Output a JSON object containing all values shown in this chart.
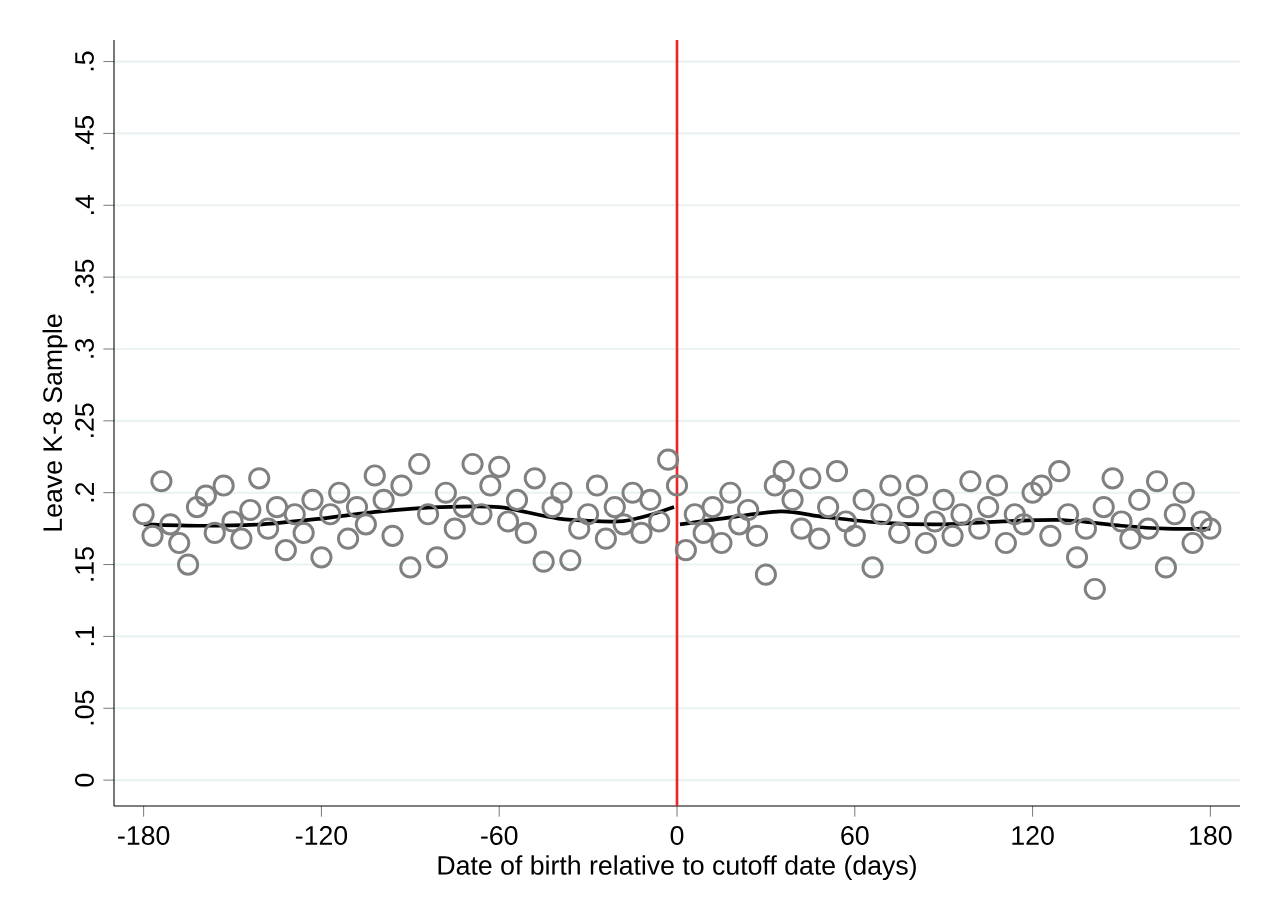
{
  "chart_data": {
    "type": "scatter",
    "xlabel": "Date of birth relative to cutoff date (days)",
    "ylabel": "Leave K-8 Sample",
    "xlim": [
      -190,
      190
    ],
    "ylim": [
      -0.018,
      0.515
    ],
    "xticks": [
      -180,
      -120,
      -60,
      0,
      60,
      120,
      180
    ],
    "yticks": [
      0,
      {
        "value": 0.05,
        "label": ".05"
      },
      {
        "value": 0.1,
        "label": ".1"
      },
      {
        "value": 0.15,
        "label": ".15"
      },
      {
        "value": 0.2,
        "label": ".2"
      },
      {
        "value": 0.25,
        "label": ".25"
      },
      {
        "value": 0.3,
        "label": ".3"
      },
      {
        "value": 0.35,
        "label": ".35"
      },
      {
        "value": 0.4,
        "label": ".4"
      },
      {
        "value": 0.45,
        "label": ".45"
      },
      {
        "value": 0.5,
        "label": ".5"
      }
    ],
    "grid": "y",
    "legend": false,
    "ref_lines": [
      {
        "axis": "x",
        "value": 0,
        "color": "#e8272b"
      }
    ],
    "series": [
      {
        "marker": "circle",
        "color": "#808080",
        "x": [
          -180,
          -177,
          -174,
          -171,
          -168,
          -165,
          -162,
          -159,
          -156,
          -153,
          -150,
          -147,
          -144,
          -141,
          -138,
          -135,
          -132,
          -129,
          -126,
          -123,
          -120,
          -117,
          -114,
          -111,
          -108,
          -105,
          -102,
          -99,
          -96,
          -93,
          -90,
          -87,
          -84,
          -81,
          -78,
          -75,
          -72,
          -69,
          -66,
          -63,
          -60,
          -57,
          -54,
          -51,
          -48,
          -45,
          -42,
          -39,
          -36,
          -33,
          -30,
          -27,
          -24,
          -21,
          -18,
          -15,
          -12,
          -9,
          -6,
          -3,
          0,
          3,
          6,
          9,
          12,
          15,
          18,
          21,
          24,
          27,
          30,
          33,
          36,
          39,
          42,
          45,
          48,
          51,
          54,
          57,
          60,
          63,
          66,
          69,
          72,
          75,
          78,
          81,
          84,
          87,
          90,
          93,
          96,
          99,
          102,
          105,
          108,
          111,
          114,
          117,
          120,
          123,
          126,
          129,
          132,
          135,
          138,
          141,
          144,
          147,
          150,
          153,
          156,
          159,
          162,
          165,
          168,
          171,
          174,
          177,
          180
        ],
        "values": [
          0.185,
          0.17,
          0.208,
          0.178,
          0.165,
          0.15,
          0.19,
          0.198,
          0.172,
          0.205,
          0.18,
          0.168,
          0.188,
          0.21,
          0.175,
          0.19,
          0.16,
          0.185,
          0.172,
          0.195,
          0.155,
          0.185,
          0.2,
          0.168,
          0.19,
          0.178,
          0.212,
          0.195,
          0.17,
          0.205,
          0.148,
          0.22,
          0.185,
          0.155,
          0.2,
          0.175,
          0.19,
          0.22,
          0.185,
          0.205,
          0.218,
          0.18,
          0.195,
          0.172,
          0.21,
          0.152,
          0.19,
          0.2,
          0.153,
          0.175,
          0.185,
          0.205,
          0.168,
          0.19,
          0.178,
          0.2,
          0.172,
          0.195,
          0.18,
          0.223,
          0.205,
          0.16,
          0.185,
          0.172,
          0.19,
          0.165,
          0.2,
          0.178,
          0.188,
          0.17,
          0.143,
          0.205,
          0.215,
          0.195,
          0.175,
          0.21,
          0.168,
          0.19,
          0.215,
          0.18,
          0.17,
          0.195,
          0.148,
          0.185,
          0.205,
          0.172,
          0.19,
          0.205,
          0.165,
          0.18,
          0.195,
          0.17,
          0.185,
          0.208,
          0.175,
          0.19,
          0.205,
          0.165,
          0.185,
          0.178,
          0.2,
          0.205,
          0.17,
          0.215,
          0.185,
          0.155,
          0.175,
          0.133,
          0.19,
          0.21,
          0.18,
          0.168,
          0.195,
          0.175,
          0.208,
          0.148,
          0.185,
          0.2,
          0.165,
          0.18,
          0.175
        ]
      },
      {
        "type": "line",
        "marker": "none",
        "color": "#000000",
        "x": [
          -180,
          -160,
          -140,
          -120,
          -100,
          -80,
          -60,
          -40,
          -20,
          -10,
          -1
        ],
        "values": [
          0.178,
          0.177,
          0.178,
          0.182,
          0.187,
          0.19,
          0.19,
          0.182,
          0.18,
          0.184,
          0.19
        ]
      },
      {
        "type": "line",
        "marker": "none",
        "color": "#000000",
        "x": [
          1,
          15,
          35,
          50,
          70,
          90,
          110,
          130,
          150,
          165,
          180
        ],
        "values": [
          0.178,
          0.182,
          0.187,
          0.183,
          0.179,
          0.178,
          0.18,
          0.181,
          0.177,
          0.175,
          0.175
        ]
      }
    ]
  }
}
